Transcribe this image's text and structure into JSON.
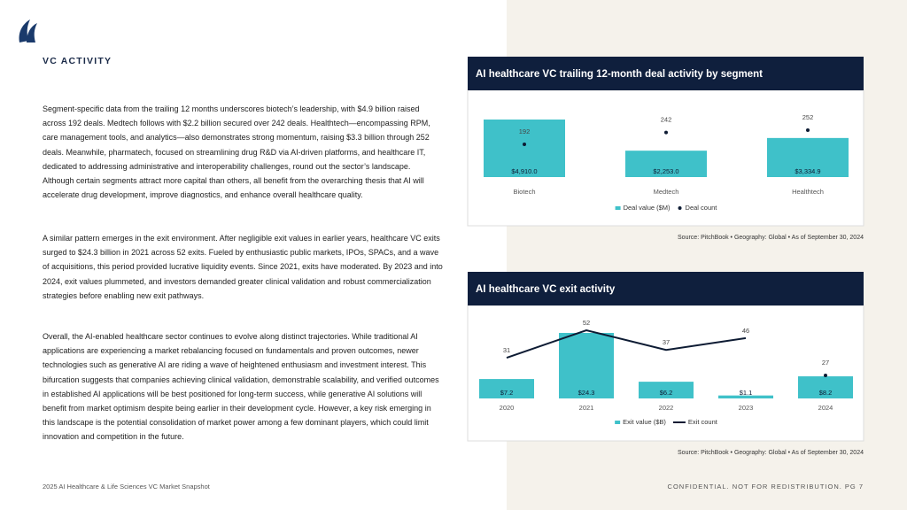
{
  "header": {
    "section": "VC ACTIVITY"
  },
  "body": {
    "paragraphs": [
      "Segment-specific data from the trailing 12 months underscores biotech’s leadership, with $4.9 billion raised across 192 deals. Medtech follows with $2.2 billion secured over 242 deals. Healthtech—encompassing RPM, care management tools, and analytics—also demonstrates strong momentum, raising $3.3 billion through 252 deals. Meanwhile, pharmatech, focused on streamlining drug R&D via AI-driven platforms, and healthcare IT, dedicated to addressing administrative and interoperability challenges, round out the sector’s landscape. Although certain segments attract more capital than others, all benefit from the overarching thesis that AI will accelerate drug development, improve diagnostics, and enhance overall healthcare quality.",
      "A similar pattern emerges in the exit environment. After negligible exit values in earlier years, healthcare VC exits surged to $24.3 billion in 2021 across 52 exits. Fueled by enthusiastic public markets, IPOs, SPACs, and a wave of acquisitions, this period provided lucrative liquidity events. Since 2021, exits have moderated. By 2023 and into 2024, exit values plummeted, and investors demanded greater clinical validation and robust commercialization strategies before enabling new exit pathways.",
      "Overall, the AI-enabled healthcare sector continues to evolve along distinct trajectories. While traditional AI applications are experiencing a market rebalancing focused on fundamentals and proven outcomes, newer technologies such as generative AI are riding a wave of heightened enthusiasm and investment interest. This bifurcation suggests that companies achieving clinical validation, demonstrable scalability, and verified outcomes in established AI applications will be best positioned for long-term success, while generative AI solutions will benefit from market optimism despite being earlier in their development cycle. However, a key risk emerging in this landscape is the potential consolidation of market power among a few dominant players, which could limit innovation and competition in the future."
    ]
  },
  "footer": {
    "left": "2025 AI Healthcare & Life Sciences VC Market Snapshot",
    "right": "CONFIDENTIAL. NOT FOR REDISTRIBUTION. PG 7"
  },
  "chart_data": [
    {
      "type": "bar",
      "title": "AI healthcare VC trailing 12-month deal activity by segment",
      "source": "Source: PitchBook • Geography: Global • As of September 30, 2024",
      "categories": [
        "Biotech",
        "Medtech",
        "Healthtech"
      ],
      "series": [
        {
          "name": "Deal value ($M)",
          "type": "bar",
          "color": "#3fc1c9",
          "values": [
            4910.0,
            2253.0,
            3334.9
          ],
          "value_labels": [
            "$4,910.0",
            "$2,253.0",
            "$3,334.9"
          ]
        },
        {
          "name": "Deal count",
          "type": "scatter",
          "color": "#0d1b33",
          "values": [
            192,
            242,
            252
          ]
        }
      ]
    },
    {
      "type": "bar",
      "title": "AI healthcare VC exit activity",
      "source": "Source: PitchBook • Geography: Global • As of September 30, 2024",
      "categories": [
        "2020",
        "2021",
        "2022",
        "2023",
        "2024"
      ],
      "series": [
        {
          "name": "Exit value ($B)",
          "type": "bar",
          "color": "#3fc1c9",
          "values": [
            7.2,
            24.3,
            6.2,
            1.1,
            8.2
          ],
          "value_labels": [
            "$7.2",
            "$24.3",
            "$6.2",
            "$1.1",
            "$8.2"
          ]
        },
        {
          "name": "Exit count",
          "type": "line",
          "color": "#0d1b33",
          "values": [
            31,
            52,
            37,
            46,
            27
          ]
        }
      ]
    }
  ]
}
